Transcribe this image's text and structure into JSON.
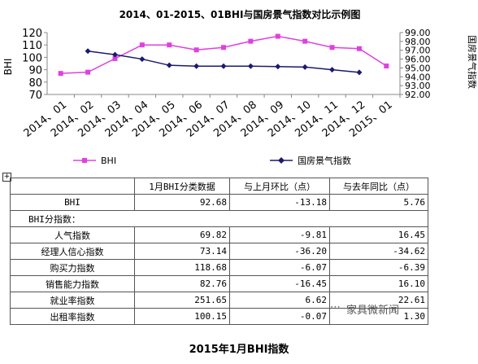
{
  "chart_data": {
    "type": "line",
    "title": "2014、01-2015、01BHI与国房景气指数对比示例图",
    "categories": [
      "2014、01",
      "2014、02",
      "2014、03",
      "2014、04",
      "2014、05",
      "2014、06",
      "2014、07",
      "2014、08",
      "2014、09",
      "2014、10",
      "2014、11",
      "2014、12",
      "2015、01"
    ],
    "ylabel": "BHI",
    "ylabel_right": "国房景气指数",
    "ylim": [
      70,
      120
    ],
    "ylim_right": [
      92.0,
      99.0
    ],
    "yticks": [
      "70",
      "80",
      "90",
      "100",
      "110",
      "120"
    ],
    "yticks_right": [
      "92.00",
      "93.00",
      "94.00",
      "95.00",
      "96.00",
      "97.00",
      "98.00",
      "99.00"
    ],
    "legend_position": "bottom",
    "series": [
      {
        "name": "BHI",
        "axis": "left",
        "color": "#e040e0",
        "values": [
          87,
          88,
          99,
          110,
          110,
          106,
          108,
          113,
          117,
          113,
          108,
          107,
          93
        ]
      },
      {
        "name": "国房景气指数",
        "axis": "right",
        "color": "#1a1a6e",
        "values": [
          null,
          96.9,
          96.5,
          96.0,
          95.3,
          95.2,
          95.2,
          95.2,
          95.15,
          95.1,
          94.8,
          94.5,
          null
        ]
      }
    ]
  },
  "table": {
    "headers": [
      "",
      "1月BHI分类数据",
      "与上月环比（点）",
      "与去年同比（点）"
    ],
    "rows": [
      {
        "label": "BHI",
        "v1": "92.68",
        "v2": "-13.18",
        "v3": "5.76"
      },
      {
        "label": "BHI分指数：",
        "v1": "",
        "v2": "",
        "v3": "",
        "span": true
      },
      {
        "label": "人气指数",
        "v1": "69.82",
        "v2": "-9.81",
        "v3": "16.45"
      },
      {
        "label": "经理人信心指数",
        "v1": "73.14",
        "v2": "-36.20",
        "v3": "-34.62"
      },
      {
        "label": "购买力指数",
        "v1": "118.68",
        "v2": "-6.07",
        "v3": "-6.39"
      },
      {
        "label": "销售能力指数",
        "v1": "82.76",
        "v2": "-16.45",
        "v3": "16.10"
      },
      {
        "label": "就业率指数",
        "v1": "251.65",
        "v2": "6.62",
        "v3": "22.61"
      },
      {
        "label": "出租率指数",
        "v1": "100.15",
        "v2": "-0.07",
        "v3": "1.30"
      }
    ]
  },
  "caption": "2015年1月BHI指数",
  "watermark": "家具微新闻",
  "table_toggle": "+"
}
